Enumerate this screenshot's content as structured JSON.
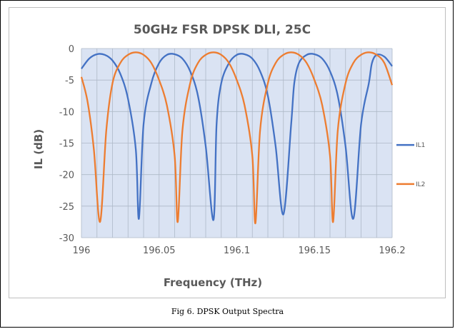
{
  "caption": "Fig 6. DPSK Output Spectra",
  "chart_data": {
    "type": "line",
    "title": "50GHz FSR DPSK DLI, 25C",
    "xlabel": "Frequency (THz)",
    "ylabel": "IL (dB)",
    "xlim": [
      196,
      196.2
    ],
    "ylim": [
      -30,
      0
    ],
    "x_ticks": [
      "196",
      "196.05",
      "196.1",
      "196.15",
      "196.2"
    ],
    "y_ticks": [
      "0",
      "-5",
      "-10",
      "-15",
      "-20",
      "-25",
      "-30"
    ],
    "grid": true,
    "legend_position": "right",
    "series": [
      {
        "name": "IL1",
        "color": "#4472c4",
        "x": [
          196.0,
          196.005,
          196.01,
          196.015,
          196.02,
          196.025,
          196.03,
          196.035,
          196.037,
          196.04,
          196.045,
          196.05,
          196.055,
          196.06,
          196.065,
          196.07,
          196.075,
          196.08,
          196.085,
          196.087,
          196.09,
          196.095,
          196.1,
          196.105,
          196.11,
          196.115,
          196.12,
          196.125,
          196.13,
          196.135,
          196.137,
          196.14,
          196.145,
          196.15,
          196.155,
          196.16,
          196.165,
          196.17,
          196.175,
          196.18,
          196.185,
          196.187,
          196.19,
          196.195,
          196.2
        ],
        "y": [
          -3.2,
          -1.6,
          -0.9,
          -1.0,
          -1.9,
          -4.0,
          -8.0,
          -16.0,
          -27.0,
          -12.0,
          -5.5,
          -2.3,
          -1.0,
          -0.9,
          -1.6,
          -3.6,
          -7.5,
          -15.5,
          -27.2,
          -12.0,
          -5.5,
          -2.3,
          -1.0,
          -0.9,
          -1.6,
          -3.6,
          -7.5,
          -15.5,
          -26.3,
          -12.0,
          -5.5,
          -2.3,
          -1.0,
          -0.9,
          -1.6,
          -3.6,
          -7.5,
          -15.5,
          -27.0,
          -12.0,
          -5.5,
          -2.3,
          -1.0,
          -1.3,
          -2.8
        ]
      },
      {
        "name": "IL2",
        "color": "#ed7d31",
        "x": [
          196.0,
          196.004,
          196.008,
          196.012,
          196.016,
          196.02,
          196.025,
          196.03,
          196.035,
          196.04,
          196.045,
          196.05,
          196.055,
          196.06,
          196.062,
          196.065,
          196.07,
          196.075,
          196.08,
          196.085,
          196.09,
          196.095,
          196.1,
          196.105,
          196.11,
          196.112,
          196.115,
          196.12,
          196.125,
          196.13,
          196.135,
          196.14,
          196.145,
          196.15,
          196.155,
          196.16,
          196.162,
          196.165,
          196.17,
          196.175,
          196.18,
          196.185,
          196.19,
          196.195,
          196.2
        ],
        "y": [
          -4.5,
          -8.5,
          -16.0,
          -27.5,
          -13.0,
          -5.5,
          -2.3,
          -1.0,
          -0.6,
          -1.0,
          -2.3,
          -5.0,
          -9.0,
          -17.0,
          -27.5,
          -13.0,
          -5.5,
          -2.3,
          -1.0,
          -0.6,
          -1.0,
          -2.3,
          -5.0,
          -9.0,
          -17.0,
          -27.7,
          -13.0,
          -5.5,
          -2.3,
          -1.0,
          -0.6,
          -1.0,
          -2.3,
          -5.0,
          -9.0,
          -17.0,
          -27.5,
          -13.0,
          -5.5,
          -2.3,
          -1.0,
          -0.6,
          -1.0,
          -2.3,
          -5.8
        ]
      }
    ]
  }
}
